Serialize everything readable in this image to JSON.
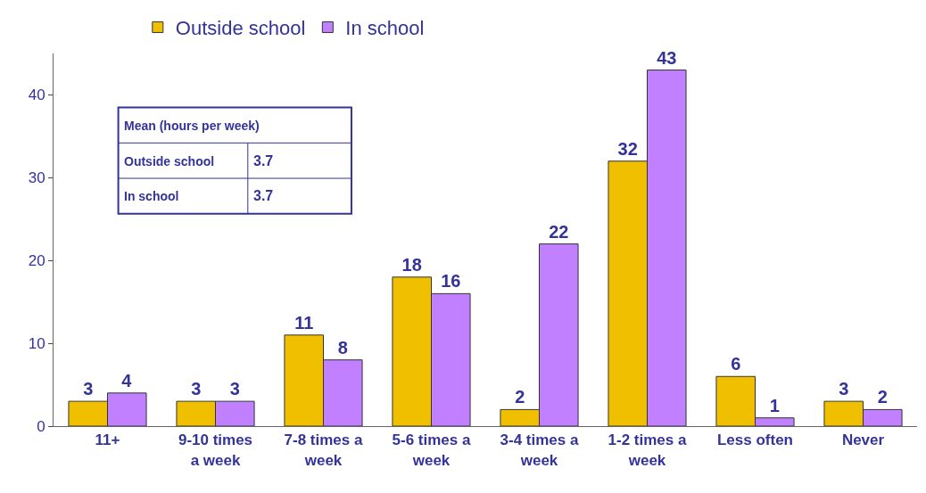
{
  "chart_data": {
    "type": "bar",
    "categories": [
      "11+",
      "9-10 times a week",
      "7-8 times a week",
      "5-6 times a week",
      "3-4 times a week",
      "1-2 times a week",
      "Less often",
      "Never"
    ],
    "series": [
      {
        "name": "Outside school",
        "color": "#f0c000",
        "values": [
          3,
          3,
          11,
          18,
          2,
          32,
          6,
          3
        ]
      },
      {
        "name": "In school",
        "color": "#c080ff",
        "values": [
          4,
          3,
          8,
          16,
          22,
          43,
          1,
          2
        ]
      }
    ],
    "ylim": [
      0,
      45
    ],
    "yticks": [
      0,
      10,
      20,
      30,
      40
    ],
    "legend": "top left",
    "data_labels": true,
    "annotations": [
      "Mean (hours per week)",
      "Outside school",
      "3.7",
      "In school",
      "3.7"
    ]
  }
}
